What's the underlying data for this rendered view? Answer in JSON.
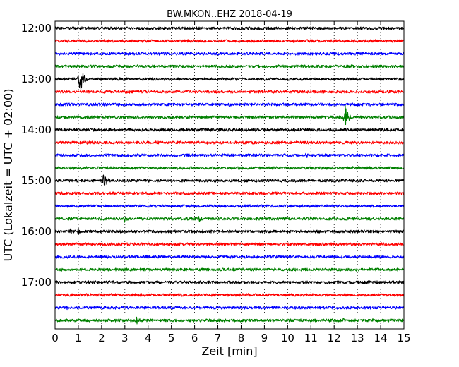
{
  "chart_data": {
    "type": "line",
    "title": "BW.MKON..EHZ 2018-04-19",
    "xlabel": "Zeit  [min]",
    "ylabel": "UTC (Lokalzeit = UTC + 02:00)",
    "xlim": [
      0,
      15
    ],
    "x_ticks": [
      "0",
      "1",
      "2",
      "3",
      "4",
      "5",
      "6",
      "7",
      "8",
      "9",
      "10",
      "11",
      "12",
      "13",
      "14",
      "15"
    ],
    "y_ticks": [
      {
        "label": "12:00",
        "trace": 0
      },
      {
        "label": "13:00",
        "trace": 4
      },
      {
        "label": "14:00",
        "trace": 8
      },
      {
        "label": "15:00",
        "trace": 12
      },
      {
        "label": "16:00",
        "trace": 16
      },
      {
        "label": "17:00",
        "trace": 20
      }
    ],
    "grid": "vertical-dotted",
    "colors": [
      "#000000",
      "#ff0000",
      "#0000ff",
      "#008000"
    ],
    "traces": [
      {
        "start": "12:00",
        "events": []
      },
      {
        "start": "12:15",
        "events": []
      },
      {
        "start": "12:30",
        "events": []
      },
      {
        "start": "12:45",
        "events": [
          {
            "t": 4.7,
            "amp": 3
          },
          {
            "t": 7.0,
            "amp": 3
          }
        ]
      },
      {
        "start": "13:00",
        "events": [
          {
            "t": 1.05,
            "amp": 24
          },
          {
            "t": 4.2,
            "amp": 3
          }
        ]
      },
      {
        "start": "13:15",
        "events": [
          {
            "t": 5.5,
            "amp": 3
          },
          {
            "t": 11.4,
            "amp": 4
          }
        ]
      },
      {
        "start": "13:30",
        "events": [
          {
            "t": 7.5,
            "amp": 3
          },
          {
            "t": 14.1,
            "amp": 3
          }
        ]
      },
      {
        "start": "13:45",
        "events": [
          {
            "t": 12.45,
            "amp": 20
          }
        ]
      },
      {
        "start": "14:00",
        "events": [
          {
            "t": 4.6,
            "amp": 4
          },
          {
            "t": 5.6,
            "amp": 3
          }
        ]
      },
      {
        "start": "14:15",
        "events": [
          {
            "t": 1.4,
            "amp": 3
          }
        ]
      },
      {
        "start": "14:30",
        "events": [
          {
            "t": 10.8,
            "amp": 4
          }
        ]
      },
      {
        "start": "14:45",
        "events": [
          {
            "t": 15.0,
            "amp": 3
          }
        ]
      },
      {
        "start": "15:00",
        "events": [
          {
            "t": 1.1,
            "amp": 4
          },
          {
            "t": 2.1,
            "amp": 12
          },
          {
            "t": 4.0,
            "amp": 3
          }
        ]
      },
      {
        "start": "15:15",
        "events": [
          {
            "t": 0.2,
            "amp": 3
          }
        ]
      },
      {
        "start": "15:30",
        "events": [
          {
            "t": 9.8,
            "amp": 3
          }
        ]
      },
      {
        "start": "15:45",
        "events": [
          {
            "t": 3.0,
            "amp": 6
          },
          {
            "t": 6.2,
            "amp": 5
          }
        ]
      },
      {
        "start": "16:00",
        "events": [
          {
            "t": 0.65,
            "amp": 6
          },
          {
            "t": 1.0,
            "amp": 5
          }
        ]
      },
      {
        "start": "16:15",
        "events": []
      },
      {
        "start": "16:30",
        "events": []
      },
      {
        "start": "16:45",
        "events": [
          {
            "t": 0.3,
            "amp": 3
          }
        ]
      },
      {
        "start": "17:00",
        "events": []
      },
      {
        "start": "17:15",
        "events": []
      },
      {
        "start": "17:30",
        "events": [
          {
            "t": 0.5,
            "amp": 3
          }
        ]
      },
      {
        "start": "17:45",
        "events": [
          {
            "t": 3.5,
            "amp": 6
          },
          {
            "t": 11.2,
            "amp": 3
          },
          {
            "t": 12.4,
            "amp": 4
          }
        ]
      }
    ]
  }
}
